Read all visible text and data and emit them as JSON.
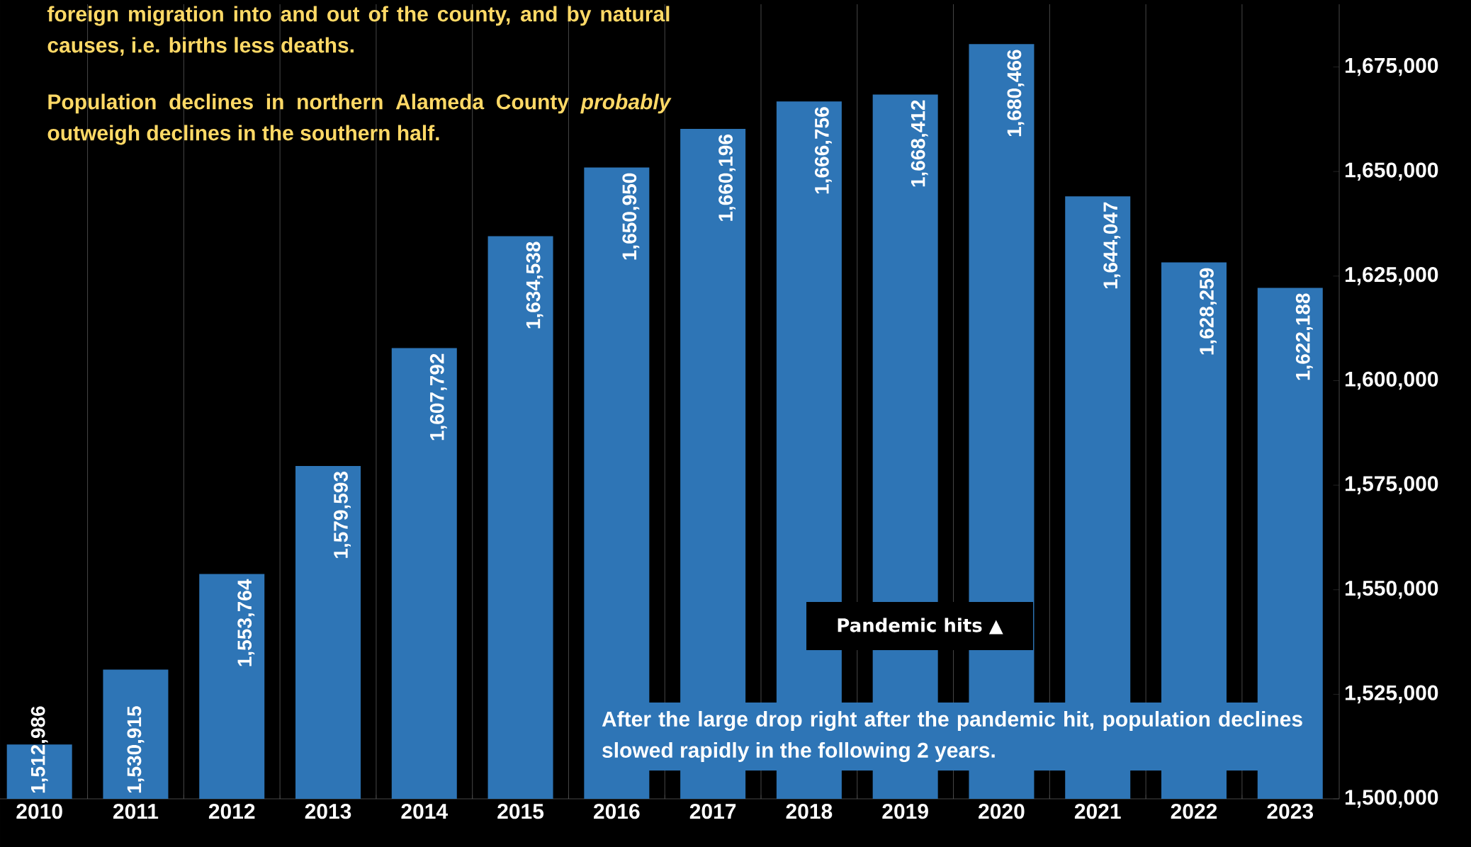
{
  "chart_data": {
    "type": "bar",
    "categories": [
      "2010",
      "2011",
      "2012",
      "2013",
      "2014",
      "2015",
      "2016",
      "2017",
      "2018",
      "2019",
      "2020",
      "2021",
      "2022",
      "2023"
    ],
    "values": [
      1512986,
      1530915,
      1553764,
      1579593,
      1607792,
      1634538,
      1650950,
      1660196,
      1666756,
      1668412,
      1680466,
      1644047,
      1628259,
      1622188
    ],
    "value_labels": [
      "1,512,986",
      "1,530,915",
      "1,553,764",
      "1,579,593",
      "1,607,792",
      "1,634,538",
      "1,650,950",
      "1,660,196",
      "1,666,756",
      "1,668,412",
      "1,680,466",
      "1,644,047",
      "1,628,259",
      "1,622,188"
    ],
    "color": "#2e75b6",
    "ylim": [
      1500000,
      1690000
    ],
    "yticks": [
      {
        "value": 1500000,
        "label": "1,500,000"
      },
      {
        "value": 1525000,
        "label": "1,525,000"
      },
      {
        "value": 1550000,
        "label": "1,550,000"
      },
      {
        "value": 1575000,
        "label": "1,575,000"
      },
      {
        "value": 1600000,
        "label": "1,600,000"
      },
      {
        "value": 1625000,
        "label": "1,625,000"
      },
      {
        "value": 1650000,
        "label": "1,650,000"
      },
      {
        "value": 1675000,
        "label": "1,675,000"
      }
    ],
    "grid": "x",
    "annotations": [
      "foreign migration into and out of the county, and by natural causes, i.e. births less deaths.",
      "Population declines in northern Alameda County *probably* outweigh declines in the southern half.",
      "Pandemic hits ▲",
      "After the large drop right after the pandemic hit, population declines slowed rapidly in the following 2 years."
    ]
  }
}
